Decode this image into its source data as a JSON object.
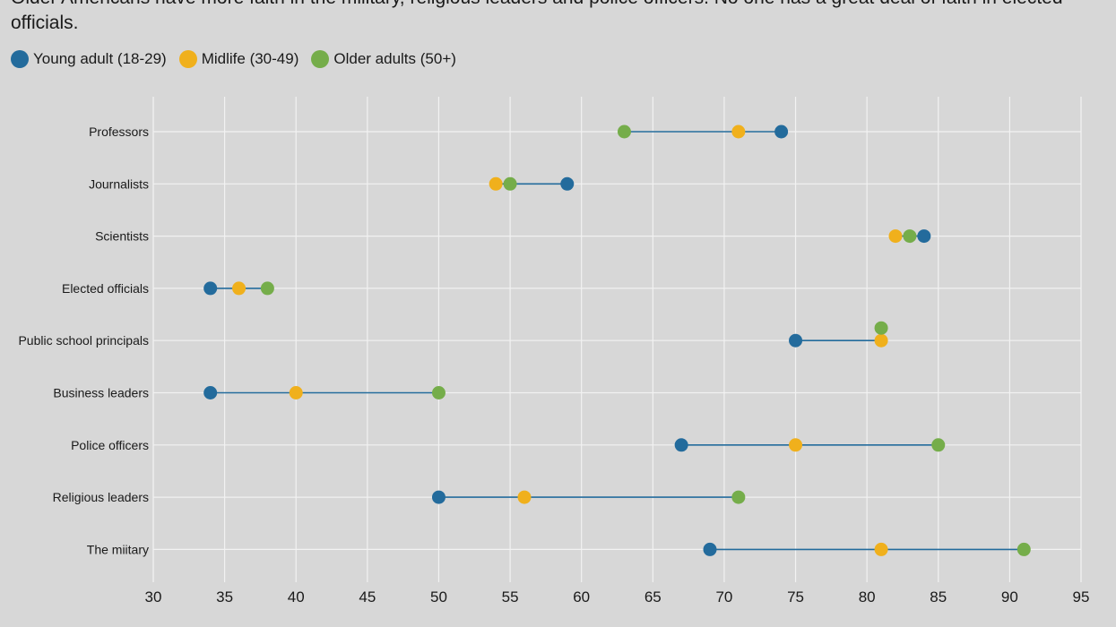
{
  "chart_data": {
    "type": "scatter",
    "subtitle": "Older Americans have more faith in the military, religious leaders and police officers. No one has a great deal of faith in elected officials.",
    "legend": [
      {
        "name": "Young adult (18-29)",
        "color": "#236b9c"
      },
      {
        "name": "Midlife (30-49)",
        "color": "#f0b01c"
      },
      {
        "name": "Older adults (50+)",
        "color": "#75ad4a"
      }
    ],
    "line_color": "#236b9c",
    "categories": [
      "Professors",
      "Journalists",
      "Scientists",
      "Elected officials",
      "Public school principals",
      "Business leaders",
      "Police officers",
      "Religious leaders",
      "The miitary"
    ],
    "series": [
      {
        "name": "Young adult (18-29)",
        "values": [
          74,
          59,
          84,
          34,
          75,
          34,
          67,
          50,
          69
        ]
      },
      {
        "name": "Midlife (30-49)",
        "values": [
          71,
          54,
          82,
          36,
          81,
          40,
          75,
          56,
          81
        ]
      },
      {
        "name": "Older adults (50+)",
        "values": [
          63,
          55,
          83,
          38,
          81,
          50,
          85,
          71,
          91
        ]
      }
    ],
    "x_ticks": [
      "30",
      "35",
      "40",
      "45",
      "50",
      "55",
      "60",
      "65",
      "70",
      "75",
      "80",
      "85",
      "90",
      "95"
    ],
    "xlim": [
      30,
      95
    ],
    "grid": true,
    "legend_position": "top-left"
  }
}
